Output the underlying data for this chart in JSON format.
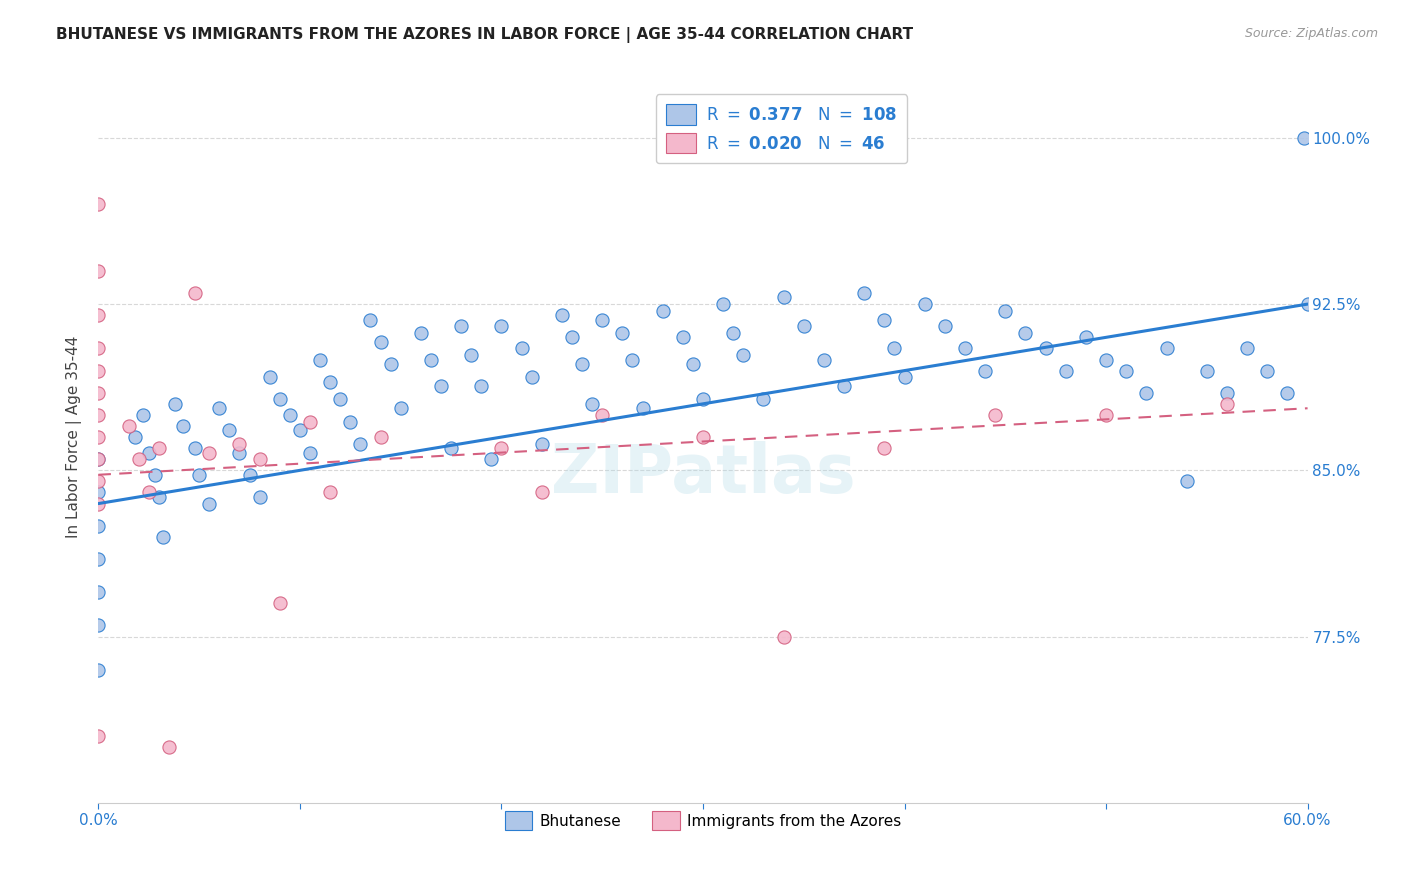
{
  "title": "BHUTANESE VS IMMIGRANTS FROM THE AZORES IN LABOR FORCE | AGE 35-44 CORRELATION CHART",
  "source": "Source: ZipAtlas.com",
  "ylabel": "In Labor Force | Age 35-44",
  "xlim": [
    0.0,
    0.6
  ],
  "ylim": [
    0.7,
    1.03
  ],
  "yticks": [
    0.775,
    0.85,
    0.925,
    1.0
  ],
  "ytick_labels": [
    "77.5%",
    "85.0%",
    "92.5%",
    "100.0%"
  ],
  "xticks": [
    0.0,
    0.1,
    0.2,
    0.3,
    0.4,
    0.5,
    0.6
  ],
  "xtick_labels": [
    "0.0%",
    "",
    "",
    "",
    "",
    "",
    "60.0%"
  ],
  "blue_color": "#aec6e8",
  "pink_color": "#f4b8cc",
  "line_blue": "#2a7dd1",
  "line_pink": "#d46080",
  "r_n_color": "#2a7dd1",
  "bhutanese_x": [
    0.0,
    0.0,
    0.0,
    0.0,
    0.0,
    0.0,
    0.0,
    0.018,
    0.022,
    0.025,
    0.028,
    0.03,
    0.032,
    0.038,
    0.042,
    0.048,
    0.05,
    0.055,
    0.06,
    0.065,
    0.07,
    0.075,
    0.08,
    0.085,
    0.09,
    0.095,
    0.1,
    0.105,
    0.11,
    0.115,
    0.12,
    0.125,
    0.13,
    0.135,
    0.14,
    0.145,
    0.15,
    0.16,
    0.165,
    0.17,
    0.175,
    0.18,
    0.185,
    0.19,
    0.195,
    0.2,
    0.21,
    0.215,
    0.22,
    0.23,
    0.235,
    0.24,
    0.245,
    0.25,
    0.26,
    0.265,
    0.27,
    0.28,
    0.29,
    0.295,
    0.3,
    0.31,
    0.315,
    0.32,
    0.33,
    0.34,
    0.35,
    0.36,
    0.37,
    0.38,
    0.39,
    0.395,
    0.4,
    0.41,
    0.42,
    0.43,
    0.44,
    0.45,
    0.46,
    0.47,
    0.48,
    0.49,
    0.5,
    0.51,
    0.52,
    0.53,
    0.54,
    0.55,
    0.56,
    0.57,
    0.58,
    0.59,
    0.598,
    0.6
  ],
  "bhutanese_y": [
    0.855,
    0.84,
    0.825,
    0.81,
    0.795,
    0.78,
    0.76,
    0.865,
    0.875,
    0.858,
    0.848,
    0.838,
    0.82,
    0.88,
    0.87,
    0.86,
    0.848,
    0.835,
    0.878,
    0.868,
    0.858,
    0.848,
    0.838,
    0.892,
    0.882,
    0.875,
    0.868,
    0.858,
    0.9,
    0.89,
    0.882,
    0.872,
    0.862,
    0.918,
    0.908,
    0.898,
    0.878,
    0.912,
    0.9,
    0.888,
    0.86,
    0.915,
    0.902,
    0.888,
    0.855,
    0.915,
    0.905,
    0.892,
    0.862,
    0.92,
    0.91,
    0.898,
    0.88,
    0.918,
    0.912,
    0.9,
    0.878,
    0.922,
    0.91,
    0.898,
    0.882,
    0.925,
    0.912,
    0.902,
    0.882,
    0.928,
    0.915,
    0.9,
    0.888,
    0.93,
    0.918,
    0.905,
    0.892,
    0.925,
    0.915,
    0.905,
    0.895,
    0.922,
    0.912,
    0.905,
    0.895,
    0.91,
    0.9,
    0.895,
    0.885,
    0.905,
    0.845,
    0.895,
    0.885,
    0.905,
    0.895,
    0.885,
    1.0,
    0.925
  ],
  "azores_x": [
    0.0,
    0.0,
    0.0,
    0.0,
    0.0,
    0.0,
    0.0,
    0.0,
    0.0,
    0.0,
    0.0,
    0.0,
    0.015,
    0.02,
    0.025,
    0.03,
    0.035,
    0.048,
    0.055,
    0.07,
    0.08,
    0.09,
    0.105,
    0.115,
    0.14,
    0.2,
    0.22,
    0.25,
    0.3,
    0.34,
    0.39,
    0.445,
    0.5,
    0.56
  ],
  "azores_y": [
    0.97,
    0.94,
    0.92,
    0.905,
    0.895,
    0.885,
    0.875,
    0.865,
    0.855,
    0.845,
    0.835,
    0.73,
    0.87,
    0.855,
    0.84,
    0.86,
    0.725,
    0.93,
    0.858,
    0.862,
    0.855,
    0.79,
    0.872,
    0.84,
    0.865,
    0.86,
    0.84,
    0.875,
    0.865,
    0.775,
    0.86,
    0.875,
    0.875,
    0.88
  ],
  "blue_trendline_x": [
    0.0,
    0.6
  ],
  "blue_trendline_y": [
    0.835,
    0.925
  ],
  "pink_trendline_x": [
    0.0,
    0.6
  ],
  "pink_trendline_y": [
    0.848,
    0.878
  ],
  "watermark": "ZIPatlas",
  "background_color": "#ffffff",
  "grid_color": "#d8d8d8"
}
